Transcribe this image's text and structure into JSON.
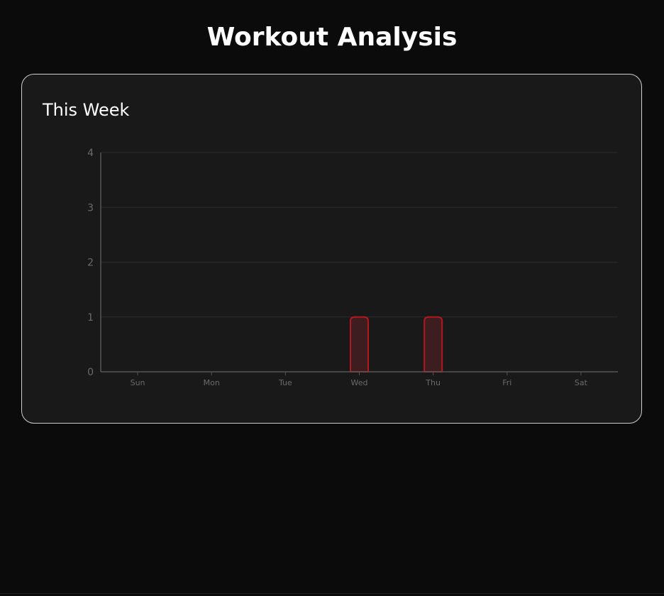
{
  "page": {
    "title": "Workout Analysis"
  },
  "card": {
    "title": "This Week"
  },
  "colors": {
    "background": "#0b0b0b",
    "card_background": "#191919",
    "card_border": "#cfcfcf",
    "grid": "#2c2c2c",
    "axis": "#555555",
    "tick_label": "#6b6b6b",
    "bar_fill": "#3d1d1f",
    "bar_stroke": "#b3181e"
  },
  "chart_data": {
    "type": "bar",
    "title": "",
    "xlabel": "",
    "ylabel": "",
    "categories": [
      "Sun",
      "Mon",
      "Tue",
      "Wed",
      "Thu",
      "Fri",
      "Sat"
    ],
    "values": [
      0,
      0,
      0,
      1,
      1,
      0,
      0
    ],
    "ylim": [
      0,
      4
    ],
    "yticks": [
      0,
      1,
      2,
      3,
      4
    ],
    "grid": true,
    "legend": "none"
  }
}
